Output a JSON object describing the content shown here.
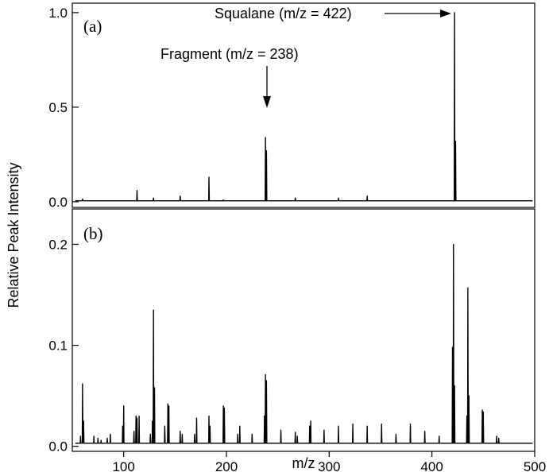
{
  "chart_data": [
    {
      "type": "line",
      "panel_label": "(a)",
      "xlim": [
        50,
        500
      ],
      "ylim": [
        -0.03,
        1.05
      ],
      "y_ticks": [
        0.0,
        0.5,
        1.0
      ],
      "y_tick_labels": [
        "0.0",
        "0.5",
        "1.0"
      ],
      "baseline": 0.005,
      "peaks": [
        {
          "x": 60,
          "y": 0.015
        },
        {
          "x": 113,
          "y": 0.06
        },
        {
          "x": 129,
          "y": 0.02
        },
        {
          "x": 155,
          "y": 0.03
        },
        {
          "x": 183,
          "y": 0.13
        },
        {
          "x": 197,
          "y": 0.01
        },
        {
          "x": 238,
          "y": 0.34
        },
        {
          "x": 239,
          "y": 0.27
        },
        {
          "x": 267,
          "y": 0.02
        },
        {
          "x": 309,
          "y": 0.02
        },
        {
          "x": 337,
          "y": 0.03
        },
        {
          "x": 422,
          "y": 1.0
        },
        {
          "x": 423,
          "y": 0.32
        }
      ],
      "annotations": [
        {
          "text": "Squalane (m/z = 422)",
          "x": 422,
          "y": 1.0
        },
        {
          "text": "Fragment (m/z = 238)",
          "x": 238,
          "y": 0.34
        }
      ]
    },
    {
      "type": "line",
      "panel_label": "(b)",
      "xlim": [
        50,
        500
      ],
      "ylim": [
        -0.005,
        0.235
      ],
      "y_ticks": [
        0.0,
        0.1,
        0.2
      ],
      "y_tick_labels": [
        "0.0",
        "0.1",
        "0.2"
      ],
      "x_ticks": [
        100,
        200,
        300,
        400,
        500
      ],
      "x_tick_labels": [
        "100",
        "200",
        "300",
        "400",
        "500"
      ],
      "xlabel": "m/z",
      "baseline": 0.003,
      "peaks": [
        {
          "x": 58,
          "y": 0.01
        },
        {
          "x": 60,
          "y": 0.062
        },
        {
          "x": 61,
          "y": 0.025
        },
        {
          "x": 71,
          "y": 0.01
        },
        {
          "x": 75,
          "y": 0.008
        },
        {
          "x": 78,
          "y": 0.006
        },
        {
          "x": 84,
          "y": 0.008
        },
        {
          "x": 87,
          "y": 0.012
        },
        {
          "x": 99,
          "y": 0.02
        },
        {
          "x": 100,
          "y": 0.04
        },
        {
          "x": 110,
          "y": 0.015
        },
        {
          "x": 112,
          "y": 0.03
        },
        {
          "x": 113,
          "y": 0.028
        },
        {
          "x": 115,
          "y": 0.03
        },
        {
          "x": 126,
          "y": 0.012
        },
        {
          "x": 128,
          "y": 0.025
        },
        {
          "x": 129,
          "y": 0.135
        },
        {
          "x": 130,
          "y": 0.058
        },
        {
          "x": 140,
          "y": 0.02
        },
        {
          "x": 143,
          "y": 0.042
        },
        {
          "x": 144,
          "y": 0.04
        },
        {
          "x": 155,
          "y": 0.015
        },
        {
          "x": 157,
          "y": 0.012
        },
        {
          "x": 169,
          "y": 0.012
        },
        {
          "x": 171,
          "y": 0.028
        },
        {
          "x": 183,
          "y": 0.03
        },
        {
          "x": 184,
          "y": 0.02
        },
        {
          "x": 197,
          "y": 0.04
        },
        {
          "x": 198,
          "y": 0.038
        },
        {
          "x": 211,
          "y": 0.012
        },
        {
          "x": 213,
          "y": 0.02
        },
        {
          "x": 225,
          "y": 0.012
        },
        {
          "x": 237,
          "y": 0.03
        },
        {
          "x": 238,
          "y": 0.071
        },
        {
          "x": 239,
          "y": 0.065
        },
        {
          "x": 253,
          "y": 0.016
        },
        {
          "x": 267,
          "y": 0.014
        },
        {
          "x": 269,
          "y": 0.01
        },
        {
          "x": 281,
          "y": 0.02
        },
        {
          "x": 282,
          "y": 0.025
        },
        {
          "x": 295,
          "y": 0.016
        },
        {
          "x": 309,
          "y": 0.02
        },
        {
          "x": 323,
          "y": 0.022
        },
        {
          "x": 337,
          "y": 0.02
        },
        {
          "x": 351,
          "y": 0.022
        },
        {
          "x": 365,
          "y": 0.012
        },
        {
          "x": 379,
          "y": 0.022
        },
        {
          "x": 393,
          "y": 0.015
        },
        {
          "x": 407,
          "y": 0.01
        },
        {
          "x": 420,
          "y": 0.098
        },
        {
          "x": 421,
          "y": 0.2
        },
        {
          "x": 422,
          "y": 0.06
        },
        {
          "x": 434,
          "y": 0.03
        },
        {
          "x": 435,
          "y": 0.157
        },
        {
          "x": 436,
          "y": 0.05
        },
        {
          "x": 449,
          "y": 0.036
        },
        {
          "x": 450,
          "y": 0.034
        },
        {
          "x": 463,
          "y": 0.01
        },
        {
          "x": 465,
          "y": 0.008
        }
      ]
    }
  ],
  "ylabel": "Relative Peak Intensity"
}
